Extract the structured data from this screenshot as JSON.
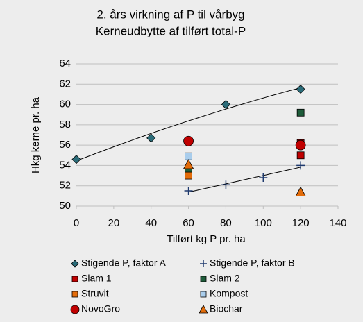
{
  "chart_data": {
    "type": "scatter",
    "title": [
      "2. års virkning af P til vårbyg",
      "Kerneudbytte af tilført total-P"
    ],
    "xlabel": "Tilført kg P pr. ha",
    "ylabel": "Hkg kerne pr. ha",
    "xlim": [
      0,
      140
    ],
    "xticks": [
      0,
      20,
      40,
      60,
      80,
      100,
      120,
      140
    ],
    "ylim": [
      50,
      64
    ],
    "yticks": [
      50,
      52,
      54,
      56,
      58,
      60,
      62,
      64
    ],
    "grid": true,
    "series": [
      {
        "name": "Stigende P, faktor A",
        "color": "#2b6c79",
        "marker": "diamond",
        "trendline": "poly2",
        "x": [
          0,
          40,
          80,
          120
        ],
        "values": [
          54.6,
          56.7,
          60.0,
          61.5
        ]
      },
      {
        "name": "Stigende P, faktor B",
        "color": "#1f3a6e",
        "marker": "plus",
        "trendline": "linear",
        "x": [
          60,
          80,
          100,
          120
        ],
        "values": [
          51.5,
          52.1,
          52.8,
          54.0
        ]
      },
      {
        "name": "Slam 1",
        "color": "#c00000",
        "marker": "square",
        "x": [
          120,
          120
        ],
        "values": [
          56.2,
          55.0
        ]
      },
      {
        "name": "Slam 2",
        "color": "#1e5c3a",
        "marker": "square",
        "x": [
          60,
          120
        ],
        "values": [
          53.6,
          59.2
        ]
      },
      {
        "name": "Struvit",
        "color": "#e36c0a",
        "marker": "square",
        "x": [
          60
        ],
        "values": [
          53.0
        ]
      },
      {
        "name": "Kompost",
        "color": "#a9cdec",
        "marker": "square",
        "x": [
          60
        ],
        "values": [
          54.9
        ]
      },
      {
        "name": "NovoGro",
        "color": "#c00000",
        "marker": "circle",
        "x": [
          60,
          120
        ],
        "values": [
          56.4,
          56.0
        ]
      },
      {
        "name": "Biochar",
        "color": "#e36c0a",
        "marker": "triangle",
        "x": [
          60,
          120
        ],
        "values": [
          54.1,
          51.4
        ]
      }
    ]
  }
}
